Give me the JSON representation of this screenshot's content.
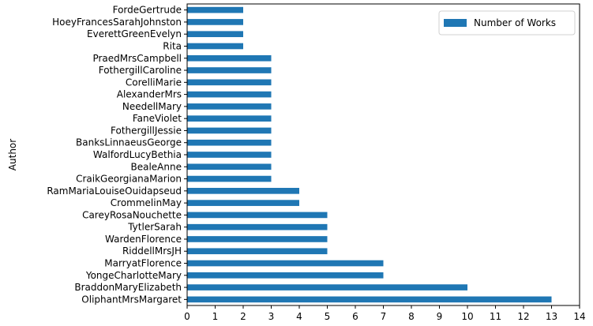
{
  "chart_data": {
    "type": "bar",
    "orientation": "horizontal",
    "ylabel": "Author",
    "xlabel": "",
    "xlim": [
      0,
      14
    ],
    "xticks": [
      "0",
      "1",
      "2",
      "3",
      "4",
      "5",
      "6",
      "7",
      "8",
      "9",
      "10",
      "11",
      "12",
      "13",
      "14"
    ],
    "grid": false,
    "legend_position": "top-right",
    "bar_color": "#1f77b4",
    "categories": [
      "OliphantMrsMargaret",
      "BraddonMaryElizabeth",
      "YongeCharlotteMary",
      "MarryatFlorence",
      "RiddellMrsJH",
      "WardenFlorence",
      "TytlerSarah",
      "CareyRosaNouchette",
      "CrommelinMay",
      "RamMariaLouiseOuidapseud",
      "CraikGeorgianaMarion",
      "BealeAnne",
      "WalfordLucyBethia",
      "BanksLinnaeusGeorge",
      "FothergillJessie",
      "FaneViolet",
      "NeedellMary",
      "AlexanderMrs",
      "CorelliMarie",
      "FothergillCaroline",
      "PraedMrsCampbell",
      "Rita",
      "EverettGreenEvelyn",
      "HoeyFrancesSarahJohnston",
      "FordeGertrude"
    ],
    "series": [
      {
        "name": "Number of Works",
        "values": [
          13,
          10,
          7,
          7,
          5,
          5,
          5,
          5,
          4,
          4,
          3,
          3,
          3,
          3,
          3,
          3,
          3,
          3,
          3,
          3,
          3,
          2,
          2,
          2,
          2
        ]
      }
    ]
  }
}
